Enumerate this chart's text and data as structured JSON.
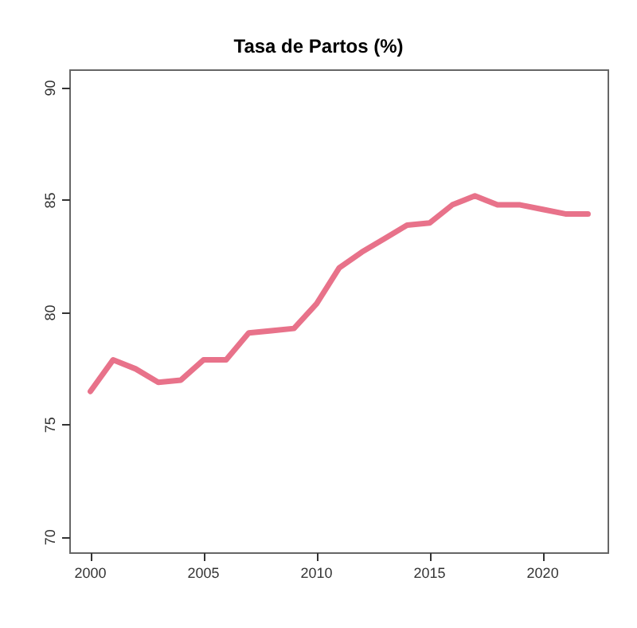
{
  "chart_data": {
    "type": "line",
    "title": "Tasa de Partos (%)",
    "x": [
      2000,
      2001,
      2002,
      2003,
      2004,
      2005,
      2006,
      2007,
      2008,
      2009,
      2010,
      2011,
      2012,
      2013,
      2014,
      2015,
      2016,
      2017,
      2018,
      2019,
      2020,
      2021,
      2022
    ],
    "series": [
      {
        "color": "#e8728a",
        "values": [
          76.5,
          77.9,
          77.5,
          76.9,
          77.0,
          77.9,
          77.9,
          79.1,
          79.2,
          79.3,
          80.4,
          82.0,
          82.7,
          83.3,
          83.9,
          84.0,
          84.8,
          85.2,
          84.8,
          84.8,
          84.6,
          84.4,
          84.4
        ]
      }
    ],
    "xlim": [
      1999.1,
      2022.9
    ],
    "xticks": [
      2000,
      2005,
      2010,
      2015,
      2020
    ],
    "ylim": [
      69.3,
      90.8
    ],
    "yticks": [
      70,
      75,
      80,
      85,
      90
    ],
    "grid": false,
    "marker": "none",
    "line_style": "solid"
  }
}
